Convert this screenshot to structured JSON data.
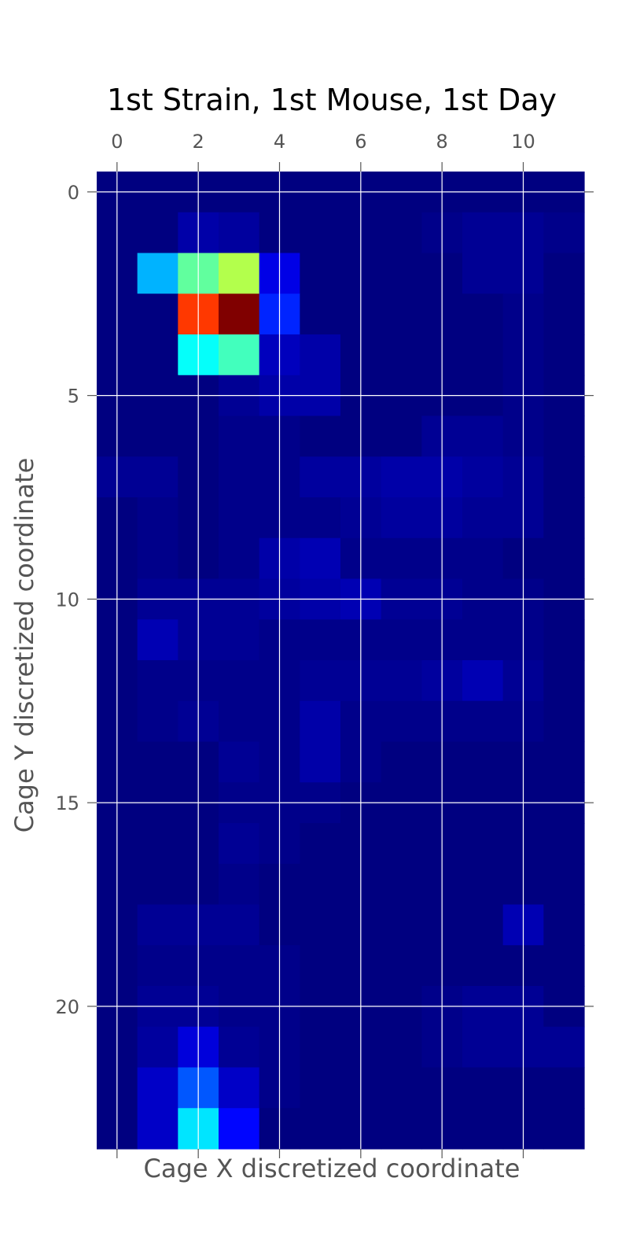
{
  "chart_data": {
    "type": "heatmap",
    "title": "1st Strain, 1st Mouse, 1st Day",
    "xlabel": "Cage X discretized coordinate",
    "ylabel": "Cage Y discretized coordinate",
    "x_ticks": [
      0,
      2,
      4,
      6,
      8,
      10
    ],
    "y_ticks": [
      0,
      5,
      10,
      15,
      20
    ],
    "xlim": [
      -0.5,
      11.5
    ],
    "ylim": [
      23.5,
      -0.5
    ],
    "x_axis_position": "top",
    "grid": true,
    "colormap": "jet",
    "value_range": [
      0,
      1
    ],
    "columns": 12,
    "rows": 24,
    "values": [
      [
        0,
        0,
        0,
        0,
        0,
        0,
        0,
        0,
        0,
        0,
        0,
        0
      ],
      [
        0,
        0,
        0.04,
        0.03,
        0,
        0,
        0,
        0,
        0.01,
        0.02,
        0.02,
        0.01
      ],
      [
        0,
        0.3,
        0.47,
        0.55,
        0.1,
        0,
        0,
        0,
        0,
        0.02,
        0.02,
        0
      ],
      [
        0,
        0,
        0.82,
        1.0,
        0.16,
        0,
        0,
        0,
        0,
        0,
        0.01,
        0
      ],
      [
        0,
        0,
        0.38,
        0.44,
        0.06,
        0.04,
        0,
        0,
        0,
        0,
        0.01,
        0
      ],
      [
        0,
        0,
        0,
        0.02,
        0.04,
        0.04,
        0,
        0,
        0,
        0,
        0.01,
        0
      ],
      [
        0,
        0,
        0,
        0.01,
        0.01,
        0,
        0,
        0,
        0.02,
        0.02,
        0.01,
        0
      ],
      [
        0.02,
        0.02,
        0,
        0.01,
        0.01,
        0.03,
        0.03,
        0.04,
        0.04,
        0.03,
        0.02,
        0
      ],
      [
        0,
        0.01,
        0,
        0.01,
        0.01,
        0.01,
        0.02,
        0.03,
        0.03,
        0.02,
        0.02,
        0
      ],
      [
        0,
        0.01,
        0,
        0.01,
        0.04,
        0.05,
        0.01,
        0.01,
        0.01,
        0.01,
        0,
        0
      ],
      [
        0,
        0.02,
        0.02,
        0.02,
        0.03,
        0.04,
        0.05,
        0.02,
        0.02,
        0.01,
        0.01,
        0
      ],
      [
        0,
        0.05,
        0.02,
        0.02,
        0.01,
        0.01,
        0.01,
        0.01,
        0.01,
        0.01,
        0.01,
        0
      ],
      [
        0,
        0.01,
        0.01,
        0.01,
        0.01,
        0.02,
        0.02,
        0.02,
        0.03,
        0.05,
        0.02,
        0
      ],
      [
        0,
        0.01,
        0.02,
        0.01,
        0.01,
        0.04,
        0.01,
        0.01,
        0.01,
        0.01,
        0.01,
        0
      ],
      [
        0,
        0,
        0,
        0.02,
        0.01,
        0.04,
        0.01,
        0,
        0,
        0,
        0,
        0
      ],
      [
        0,
        0,
        0,
        0.01,
        0.01,
        0.01,
        0,
        0,
        0,
        0,
        0,
        0
      ],
      [
        0,
        0,
        0,
        0.02,
        0.01,
        0,
        0,
        0,
        0,
        0,
        0,
        0
      ],
      [
        0,
        0,
        0,
        0.01,
        0,
        0,
        0,
        0,
        0,
        0,
        0,
        0
      ],
      [
        0,
        0.02,
        0.02,
        0.02,
        0,
        0,
        0,
        0,
        0,
        0,
        0.05,
        0
      ],
      [
        0,
        0.01,
        0.01,
        0.01,
        0.01,
        0,
        0,
        0,
        0,
        0,
        0,
        0
      ],
      [
        0,
        0.02,
        0.02,
        0.01,
        0.01,
        0,
        0,
        0,
        0.01,
        0.02,
        0.02,
        0
      ],
      [
        0,
        0.03,
        0.09,
        0.02,
        0.01,
        0,
        0,
        0,
        0.01,
        0.02,
        0.02,
        0.02
      ],
      [
        0,
        0.07,
        0.21,
        0.07,
        0.01,
        0,
        0,
        0,
        0,
        0,
        0,
        0
      ],
      [
        0,
        0.07,
        0.35,
        0.13,
        0,
        0,
        0,
        0,
        0,
        0,
        0,
        0
      ]
    ]
  }
}
